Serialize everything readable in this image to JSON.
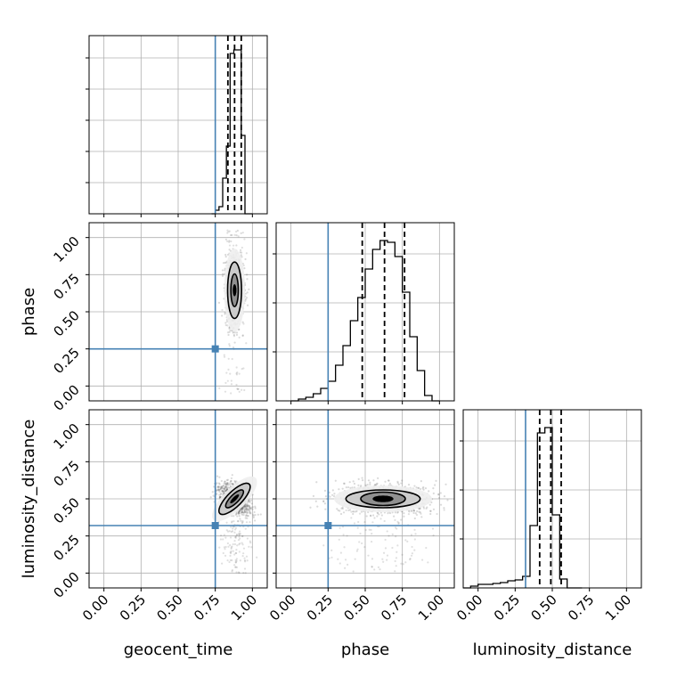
{
  "chart_data": {
    "type": "corner",
    "parameters": [
      "geocent_time",
      "phase",
      "luminosity_distance"
    ],
    "axis_labels": {
      "bottom": [
        "geocent_time",
        "phase",
        "luminosity_distance"
      ],
      "left": [
        "phase",
        "luminosity_distance"
      ]
    },
    "axis_range": [
      -0.1,
      1.1
    ],
    "ticks": [
      0.0,
      0.25,
      0.5,
      0.75,
      1.0
    ],
    "tick_labels": [
      "0.00",
      "0.25",
      "0.50",
      "0.75",
      "1.00"
    ],
    "grid": true,
    "colors": {
      "truth": "#4682b4",
      "hist": "#000000",
      "quantile": "#000000"
    },
    "truths": {
      "geocent_time": 0.75,
      "phase": 0.25,
      "luminosity_distance": 0.32
    },
    "quantiles": {
      "geocent_time": [
        0.835,
        0.88,
        0.925
      ],
      "phase": [
        0.48,
        0.63,
        0.765
      ],
      "luminosity_distance": [
        0.415,
        0.49,
        0.56
      ]
    },
    "histograms": {
      "geocent_time": {
        "edges": [
          0.725,
          0.75,
          0.775,
          0.8,
          0.825,
          0.85,
          0.875,
          0.9,
          0.925,
          0.95,
          0.975,
          1.0
        ],
        "counts": [
          0.0,
          0.02,
          0.04,
          0.2,
          0.38,
          0.9,
          0.92,
          0.92,
          0.44,
          0.0,
          0.0
        ]
      },
      "phase": {
        "edges": [
          0.0,
          0.05,
          0.1,
          0.15,
          0.2,
          0.25,
          0.3,
          0.35,
          0.4,
          0.45,
          0.5,
          0.55,
          0.6,
          0.65,
          0.7,
          0.75,
          0.8,
          0.85,
          0.9,
          0.95,
          1.0
        ],
        "counts": [
          0.0,
          0.01,
          0.02,
          0.04,
          0.07,
          0.11,
          0.2,
          0.31,
          0.45,
          0.58,
          0.74,
          0.85,
          0.9,
          0.89,
          0.81,
          0.61,
          0.36,
          0.17,
          0.03,
          0.0
        ]
      },
      "luminosity_distance": {
        "edges": [
          -0.1,
          -0.05,
          0.0,
          0.05,
          0.1,
          0.15,
          0.2,
          0.25,
          0.3,
          0.35,
          0.4,
          0.45,
          0.5,
          0.55,
          0.6,
          0.65,
          0.7
        ],
        "counts": [
          0.0,
          0.01,
          0.02,
          0.02,
          0.025,
          0.03,
          0.04,
          0.045,
          0.065,
          0.35,
          0.87,
          0.9,
          0.41,
          0.05,
          0.0,
          0.0
        ]
      }
    },
    "joint": [
      {
        "x": "geocent_time",
        "y": "phase",
        "center": [
          0.88,
          0.645
        ],
        "contours": [
          {
            "rx": 0.012,
            "ry": 0.04,
            "fill": "#111111"
          },
          {
            "rx": 0.025,
            "ry": 0.11,
            "fill": "#8a8a8a"
          },
          {
            "rx": 0.047,
            "ry": 0.19,
            "fill": "#c8c8c8"
          },
          {
            "rx": 0.07,
            "ry": 0.28,
            "fill": "#eeeeee"
          }
        ],
        "spread": [
          0.03,
          0.12
        ],
        "outlier_y_range": [
          -0.05,
          1.05
        ]
      },
      {
        "x": "geocent_time",
        "y": "luminosity_distance",
        "center": [
          0.88,
          0.5
        ],
        "tilt_deg": -45,
        "contours": [
          {
            "rx": 0.04,
            "ry": 0.012,
            "fill": "#111111"
          },
          {
            "rx": 0.08,
            "ry": 0.028,
            "fill": "#8a8a8a"
          },
          {
            "rx": 0.14,
            "ry": 0.05,
            "fill": "#c8c8c8"
          },
          {
            "rx": 0.2,
            "ry": 0.075,
            "fill": "#eeeeee"
          }
        ],
        "spread": [
          0.04,
          0.06
        ],
        "outlier_y_range": [
          0.0,
          0.35
        ]
      },
      {
        "x": "phase",
        "y": "luminosity_distance",
        "center": [
          0.62,
          0.5
        ],
        "contours": [
          {
            "rx": 0.07,
            "ry": 0.022,
            "fill": "#111111"
          },
          {
            "rx": 0.15,
            "ry": 0.045,
            "fill": "#8a8a8a"
          },
          {
            "rx": 0.25,
            "ry": 0.06,
            "fill": "#c8c8c8"
          },
          {
            "rx": 0.33,
            "ry": 0.09,
            "fill": "#eeeeee"
          }
        ],
        "spread": [
          0.16,
          0.05
        ],
        "outlier_y_range": [
          0.0,
          0.45
        ]
      }
    ]
  }
}
